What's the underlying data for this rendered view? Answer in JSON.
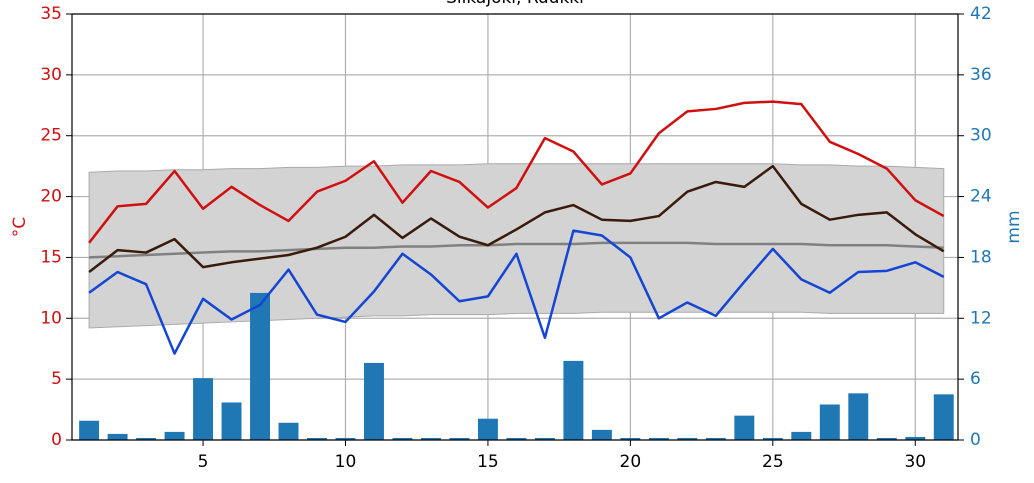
{
  "chart_data": {
    "type": "line",
    "title": "Siikajoki, Ruukki",
    "ylabel": "°C",
    "y2label": "mm",
    "x": [
      1,
      2,
      3,
      4,
      5,
      6,
      7,
      8,
      9,
      10,
      11,
      12,
      13,
      14,
      15,
      16,
      17,
      18,
      19,
      20,
      21,
      22,
      23,
      24,
      25,
      26,
      27,
      28,
      29,
      30,
      31
    ],
    "xlim": [
      0.4,
      31.5
    ],
    "xticks": [
      5,
      10,
      15,
      20,
      25,
      30
    ],
    "ylim": [
      0,
      35
    ],
    "yticks": [
      0,
      5,
      10,
      15,
      20,
      25,
      30,
      35
    ],
    "y2lim": [
      0,
      42
    ],
    "y2ticks": [
      0,
      6,
      12,
      18,
      24,
      30,
      36,
      42
    ],
    "grid": true,
    "band": {
      "color": "#d3d3d3",
      "upper": [
        22.0,
        22.1,
        22.1,
        22.2,
        22.2,
        22.3,
        22.3,
        22.4,
        22.4,
        22.5,
        22.5,
        22.6,
        22.6,
        22.6,
        22.7,
        22.7,
        22.7,
        22.7,
        22.7,
        22.7,
        22.7,
        22.7,
        22.7,
        22.7,
        22.7,
        22.6,
        22.6,
        22.5,
        22.5,
        22.4,
        22.3
      ],
      "lower": [
        9.2,
        9.3,
        9.4,
        9.5,
        9.6,
        9.7,
        9.8,
        9.9,
        10.0,
        10.1,
        10.2,
        10.2,
        10.3,
        10.3,
        10.3,
        10.4,
        10.4,
        10.4,
        10.5,
        10.5,
        10.5,
        10.5,
        10.5,
        10.5,
        10.5,
        10.5,
        10.4,
        10.4,
        10.4,
        10.4,
        10.4
      ]
    },
    "series": [
      {
        "type": "bar",
        "axis": "y2",
        "color": "#1f77b4",
        "values": [
          1.9,
          0.6,
          0.2,
          0.8,
          6.1,
          3.7,
          14.5,
          1.7,
          0.2,
          0.2,
          7.6,
          0.2,
          0.2,
          0.2,
          2.1,
          0.2,
          0.2,
          7.8,
          1.0,
          0.2,
          0.2,
          0.2,
          0.2,
          2.4,
          0.2,
          0.8,
          3.5,
          4.6,
          0.2,
          0.3,
          4.5
        ]
      },
      {
        "type": "line",
        "color": "#808080",
        "values": [
          15.0,
          15.1,
          15.2,
          15.3,
          15.4,
          15.5,
          15.5,
          15.6,
          15.7,
          15.8,
          15.8,
          15.9,
          15.9,
          16.0,
          16.0,
          16.1,
          16.1,
          16.1,
          16.2,
          16.2,
          16.2,
          16.2,
          16.1,
          16.1,
          16.1,
          16.1,
          16.0,
          16.0,
          16.0,
          15.9,
          15.8
        ]
      },
      {
        "type": "line",
        "color": "#d01010",
        "values": [
          16.2,
          19.2,
          19.4,
          22.1,
          19.0,
          20.8,
          19.3,
          18.0,
          20.4,
          21.3,
          22.9,
          19.5,
          22.1,
          21.2,
          19.1,
          20.7,
          24.8,
          23.7,
          21.0,
          21.9,
          25.2,
          27.0,
          27.2,
          27.7,
          27.8,
          27.6,
          24.5,
          23.5,
          22.3,
          19.7,
          18.4
        ]
      },
      {
        "type": "line",
        "color": "#3a1a08",
        "values": [
          13.8,
          15.6,
          15.4,
          16.5,
          14.2,
          14.6,
          14.9,
          15.2,
          15.8,
          16.7,
          18.5,
          16.6,
          18.2,
          16.7,
          16.0,
          17.3,
          18.7,
          19.3,
          18.1,
          18.0,
          18.4,
          20.4,
          21.2,
          20.8,
          22.5,
          19.4,
          18.1,
          18.5,
          18.7,
          16.9,
          15.5
        ]
      },
      {
        "type": "line",
        "color": "#1445d4",
        "values": [
          12.1,
          13.8,
          12.8,
          7.1,
          11.6,
          9.9,
          11.1,
          14.0,
          10.3,
          9.7,
          12.2,
          15.3,
          13.6,
          11.4,
          11.8,
          15.3,
          8.4,
          17.2,
          16.8,
          15.0,
          10.0,
          11.3,
          10.2,
          13.0,
          15.7,
          13.2,
          12.1,
          13.8,
          13.9,
          14.6,
          13.4
        ]
      }
    ],
    "ycolor": "#d01010",
    "y2color": "#1f77b4"
  }
}
